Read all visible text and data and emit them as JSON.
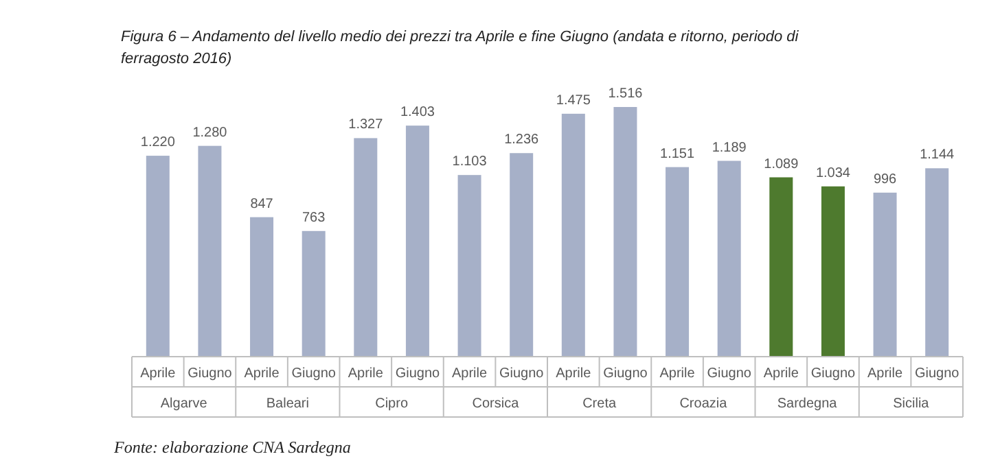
{
  "chart_data": {
    "type": "bar",
    "title": "Figura 6 – Andamento del livello medio dei prezzi tra Aprile e fine Giugno (andata e ritorno, periodo di ferragosto 2016)",
    "categories": [
      "Algarve",
      "Baleari",
      "Cipro",
      "Corsica",
      "Creta",
      "Croazia",
      "Sardegna",
      "Sicilia"
    ],
    "series": [
      {
        "name": "Aprile",
        "values": [
          1220,
          847,
          1327,
          1103,
          1475,
          1151,
          1089,
          996
        ],
        "value_labels": [
          "1.220",
          "847",
          "1.327",
          "1.103",
          "1.475",
          "1.151",
          "1.089",
          "996"
        ],
        "colors": [
          "#a6b0c8",
          "#a6b0c8",
          "#a6b0c8",
          "#a6b0c8",
          "#a6b0c8",
          "#a6b0c8",
          "#4e7a2e",
          "#a6b0c8"
        ]
      },
      {
        "name": "Giugno",
        "values": [
          1280,
          763,
          1403,
          1236,
          1516,
          1189,
          1034,
          1144
        ],
        "value_labels": [
          "1.280",
          "763",
          "1.403",
          "1.236",
          "1.516",
          "1.189",
          "1.034",
          "1.144"
        ],
        "colors": [
          "#a6b0c8",
          "#a6b0c8",
          "#a6b0c8",
          "#a6b0c8",
          "#a6b0c8",
          "#a6b0c8",
          "#4e7a2e",
          "#a6b0c8"
        ]
      }
    ],
    "annotations": [
      "Fonte: elaborazione CNA Sardegna"
    ]
  }
}
